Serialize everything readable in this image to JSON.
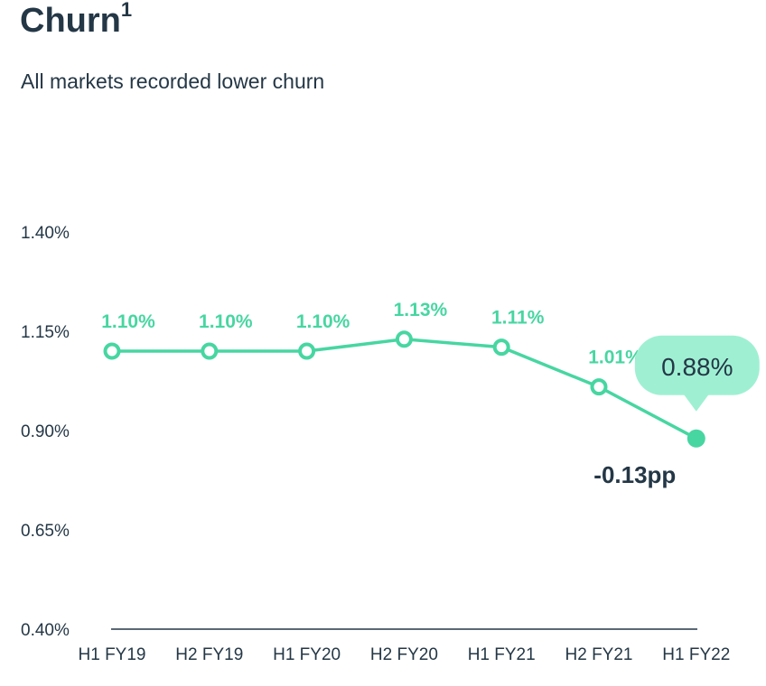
{
  "header": {
    "title": "Churn",
    "title_sup": "1",
    "subtitle": "All markets recorded lower churn"
  },
  "chart_data": {
    "type": "line",
    "title": "Churn",
    "subtitle": "All markets recorded lower churn",
    "categories": [
      "H1 FY19",
      "H2 FY19",
      "H1 FY20",
      "H2 FY20",
      "H1 FY21",
      "H2 FY21",
      "H1 FY22"
    ],
    "values": [
      1.1,
      1.1,
      1.1,
      1.13,
      1.11,
      1.01,
      0.88
    ],
    "data_labels": [
      "1.10%",
      "1.10%",
      "1.10%",
      "1.13%",
      "1.11%",
      "1.01%",
      "0.88%"
    ],
    "yticks": [
      "1.40%",
      "1.15%",
      "0.90%",
      "0.65%",
      "0.40%"
    ],
    "ylim": [
      0.4,
      1.4
    ],
    "grid": false,
    "highlight": {
      "label": "0.88%",
      "change": "-0.13pp"
    },
    "colors": {
      "line": "#47d6a2",
      "bubble": "#9ff0d3",
      "text": "#243746"
    }
  }
}
